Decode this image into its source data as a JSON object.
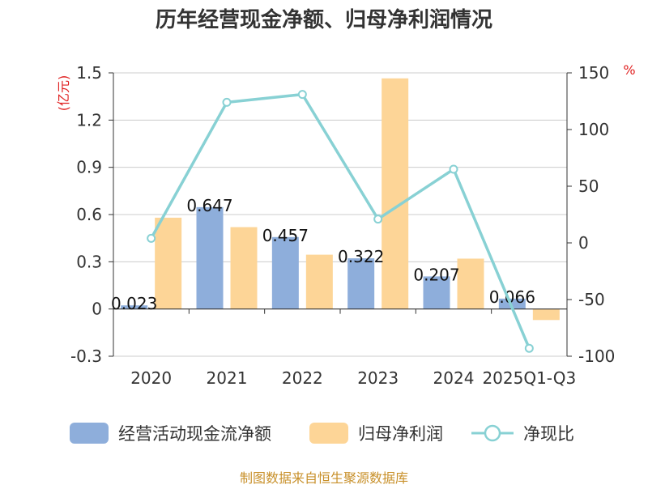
{
  "chart_data": {
    "type": "bar",
    "title": "历年经营现金净额、归母净利润情况",
    "categories": [
      "2020",
      "2021",
      "2022",
      "2023",
      "2024",
      "2025Q1-Q3"
    ],
    "left_axis_unit": "(亿元)",
    "right_axis_unit": "%",
    "left_ylim": [
      -0.3,
      1.5
    ],
    "left_ticks": [
      "-0.3",
      "0",
      "0.3",
      "0.6",
      "0.9",
      "1.2",
      "1.5"
    ],
    "right_ylim": [
      -100,
      150
    ],
    "right_ticks": [
      "-100",
      "-50",
      "0",
      "50",
      "100",
      "150"
    ],
    "grid": true,
    "legend_position": "bottom",
    "series": [
      {
        "name": "经营活动现金流净额",
        "kind": "bar",
        "axis": "left",
        "color": "#8eaedb",
        "values": [
          0.023,
          0.647,
          0.457,
          0.322,
          0.207,
          0.066
        ],
        "labels": [
          "0.023",
          "0.647",
          "0.457",
          "0.322",
          "0.207",
          "0.066"
        ]
      },
      {
        "name": "归母净利润",
        "kind": "bar",
        "axis": "left",
        "color": "#fdd597",
        "values": [
          0.58,
          0.52,
          0.345,
          1.465,
          0.32,
          -0.07
        ]
      },
      {
        "name": "净现比",
        "kind": "line",
        "axis": "right",
        "color": "#88d1d4",
        "values": [
          4,
          124,
          131,
          21,
          65,
          -93
        ]
      }
    ],
    "source": "制图数据来自恒生聚源数据库"
  }
}
